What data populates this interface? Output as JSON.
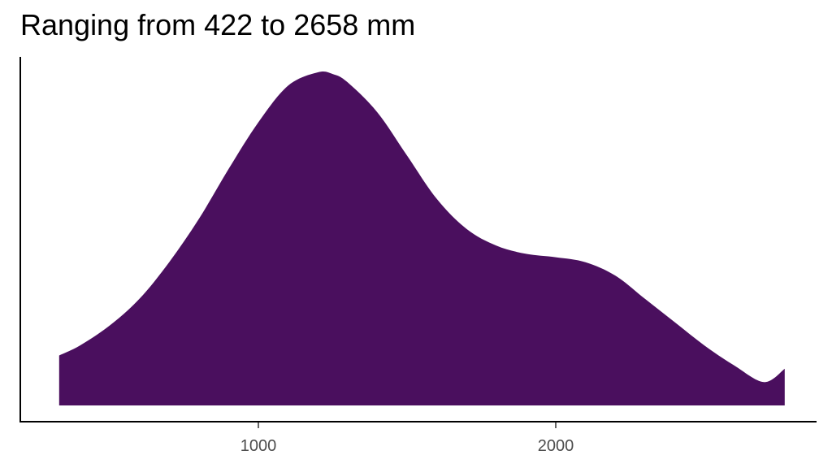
{
  "chart_data": {
    "type": "area",
    "title": "Ranging from 422 to 2658 mm",
    "xlabel": "",
    "ylabel": "",
    "x_ticks": [
      1000,
      2000
    ],
    "xlim": [
      200,
      2900
    ],
    "fill_color": "#4a0f5e",
    "grid": false,
    "legend": "none",
    "density_curve": {
      "x": [
        330,
        400,
        500,
        600,
        700,
        800,
        900,
        1000,
        1100,
        1200,
        1250,
        1300,
        1400,
        1500,
        1600,
        1700,
        1800,
        1900,
        2000,
        2100,
        2200,
        2300,
        2400,
        2500,
        2600,
        2700,
        2770
      ],
      "y": [
        0.15,
        0.18,
        0.24,
        0.32,
        0.43,
        0.56,
        0.71,
        0.85,
        0.96,
        1.0,
        0.995,
        0.97,
        0.88,
        0.75,
        0.62,
        0.53,
        0.48,
        0.455,
        0.445,
        0.43,
        0.39,
        0.32,
        0.25,
        0.18,
        0.12,
        0.07,
        0.11
      ]
    }
  }
}
